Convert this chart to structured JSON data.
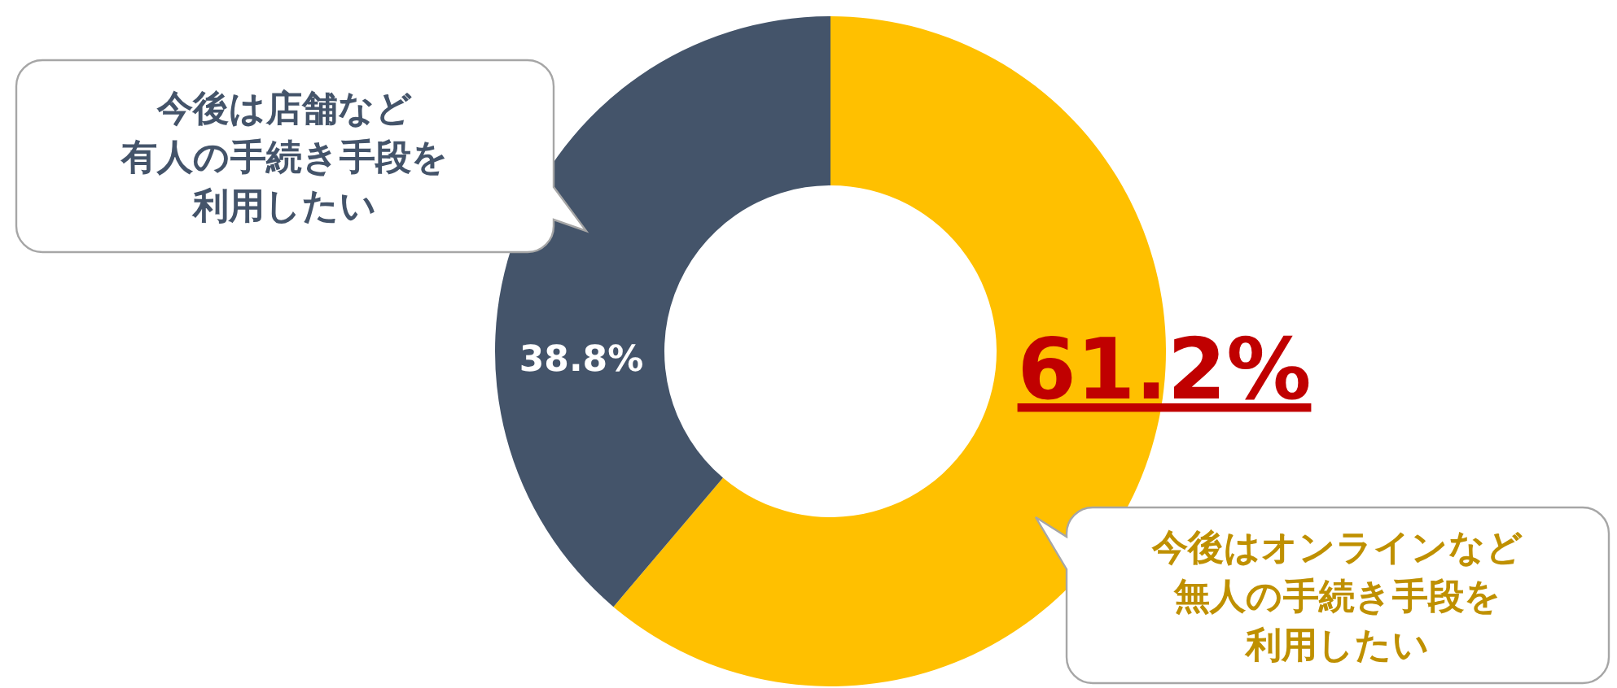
{
  "chart_data": {
    "type": "donut",
    "categories": [
      "今後はオンラインなど無人の手続き手段を利用したい",
      "今後は店舗など有人の手続き手段を利用したい"
    ],
    "values": [
      61.2,
      38.8
    ],
    "colors": [
      "#ffc000",
      "#44546a"
    ],
    "value_labels": [
      "61.2%",
      "38.8%"
    ]
  }
}
